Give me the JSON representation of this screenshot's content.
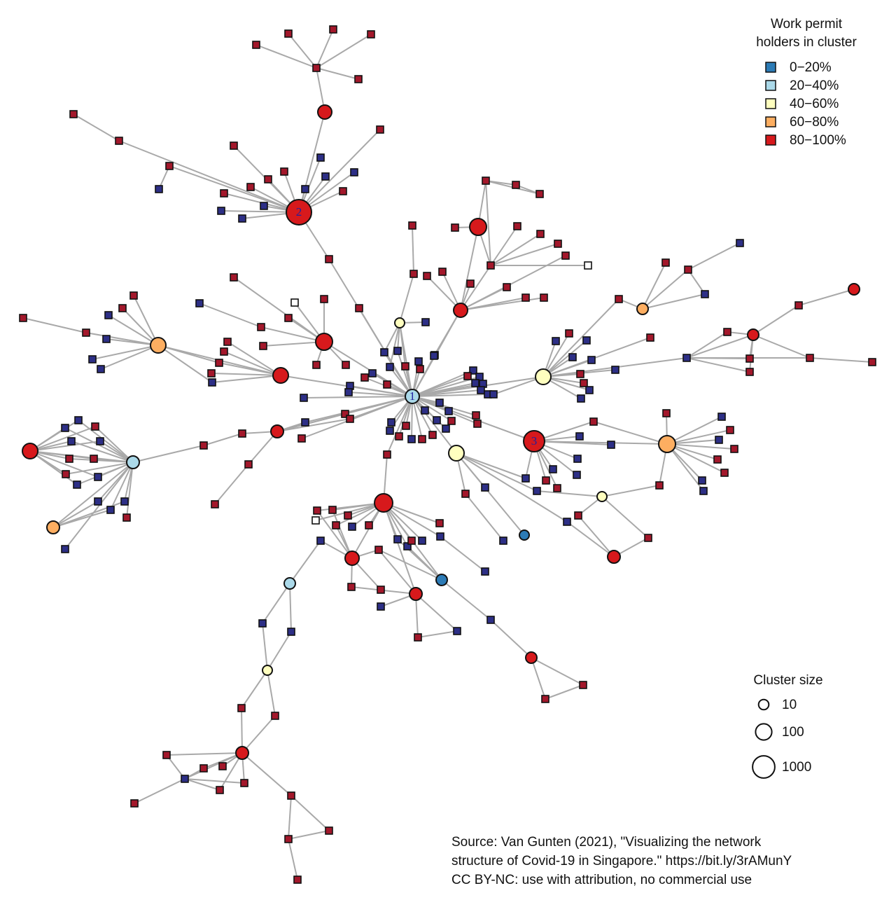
{
  "legend": {
    "title": [
      "Work permit",
      "holders in cluster"
    ],
    "items": [
      {
        "label": "0−20%",
        "color": "#2c7bb6"
      },
      {
        "label": "20−40%",
        "color": "#abd9e9"
      },
      {
        "label": "40−60%",
        "color": "#ffffbf"
      },
      {
        "label": "60−80%",
        "color": "#fdae61"
      },
      {
        "label": "80−100%",
        "color": "#d7191c"
      }
    ]
  },
  "size_legend": {
    "title": "Cluster size",
    "sizes": [
      10,
      100,
      1000
    ]
  },
  "node_labels": [
    "1",
    "2",
    "3"
  ],
  "source": [
    "Source: Van Gunten (2021), \"Visualizing the network",
    "structure of Covid-19 in Singapore.\" https://bit.ly/3rAMunY",
    "CC BY-NC: use with attribution, no commercial use"
  ]
}
